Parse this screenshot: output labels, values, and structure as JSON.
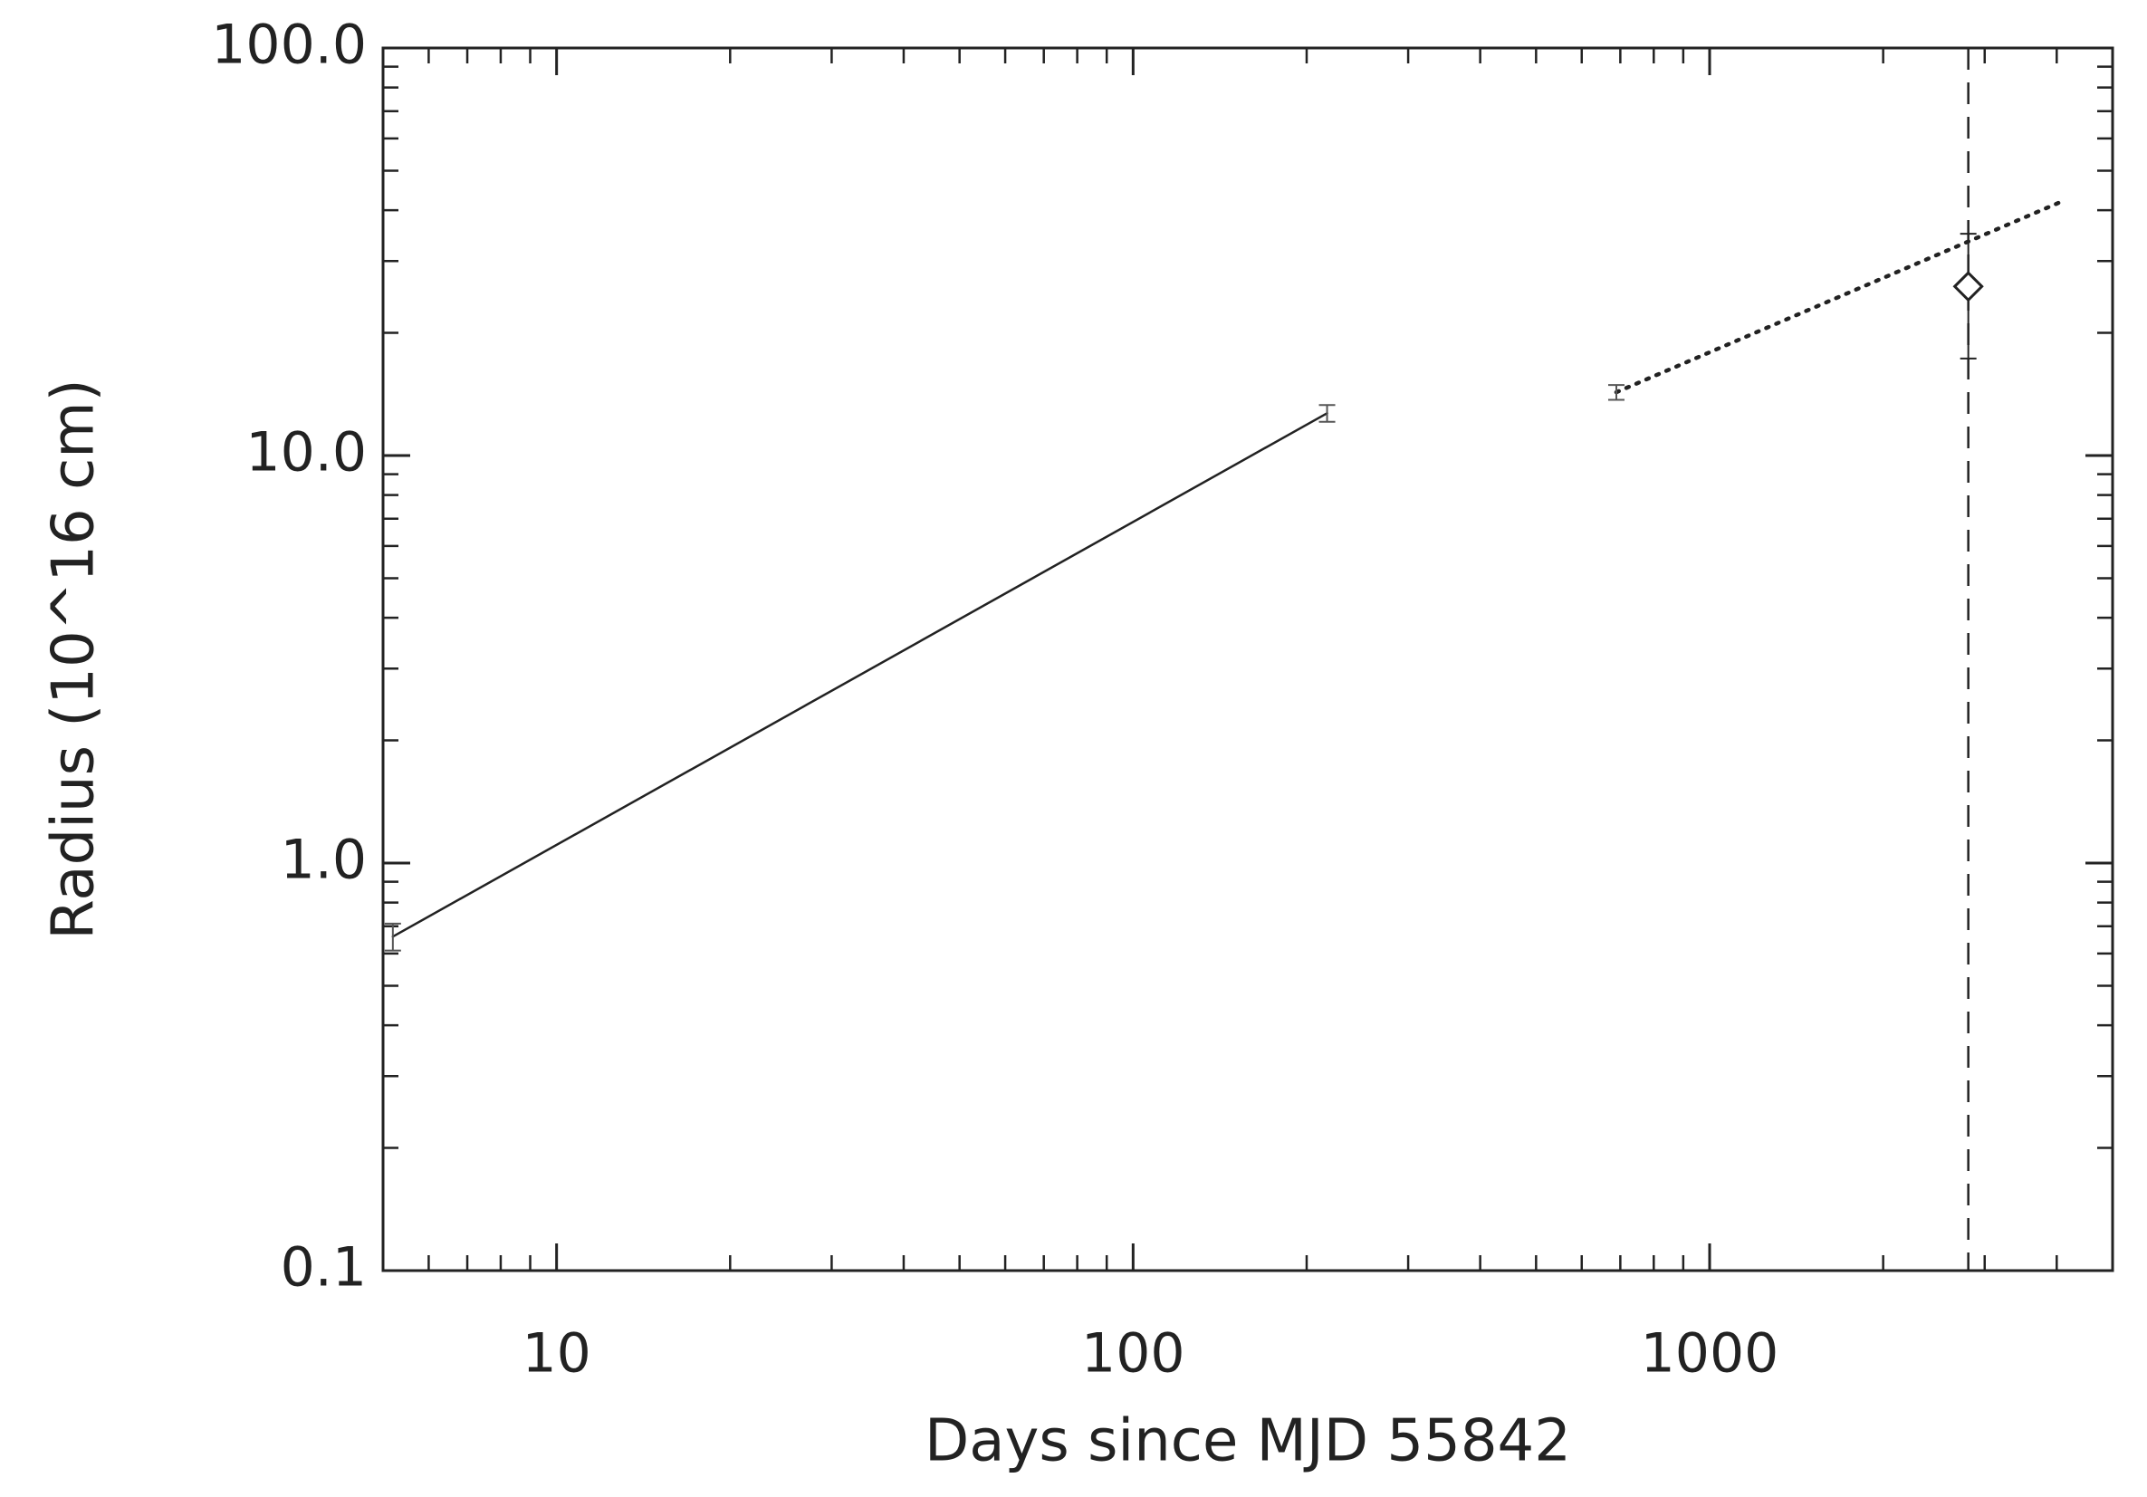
{
  "chart_data": {
    "type": "line",
    "xlabel": "Days since MJD 55842",
    "ylabel": "Radius (10^16 cm)",
    "xscale": "log",
    "yscale": "log",
    "xlim": [
      5,
      5000
    ],
    "ylim": [
      0.1,
      100
    ],
    "xticks": [
      10,
      100,
      1000
    ],
    "yticks": [
      0.1,
      {
        "value": 1,
        "label": "1.0"
      },
      {
        "value": 10,
        "label": "10.0"
      },
      {
        "value": 100,
        "label": "100.0"
      }
    ],
    "xminorticks": [
      6,
      7,
      8,
      9,
      20,
      30,
      40,
      50,
      60,
      70,
      80,
      90,
      200,
      300,
      400,
      500,
      600,
      700,
      800,
      900,
      2000,
      3000,
      4000
    ],
    "yminorticks": [
      0.2,
      0.3,
      0.4,
      0.5,
      0.6,
      0.7,
      0.8,
      0.9,
      2,
      3,
      4,
      5,
      6,
      7,
      8,
      9,
      20,
      30,
      40,
      50,
      60,
      70,
      80,
      90
    ],
    "series": [
      {
        "style": "solid",
        "color": "#222222",
        "x": [
          5.2,
          217
        ],
        "values": [
          0.66,
          12.7
        ],
        "errors": [
          0.05,
          0.6
        ]
      },
      {
        "style": "dotted",
        "color": "#222222",
        "x": [
          689,
          4080
        ],
        "values": [
          14.3,
          42
        ],
        "errors": [
          0.6,
          null
        ]
      },
      {
        "style": "marker",
        "marker": "diamond",
        "color": "#222222",
        "x": [
          2810
        ],
        "values": [
          26
        ],
        "err_low": [
          8.7
        ],
        "err_high": [
          9
        ]
      }
    ],
    "vlines": [
      {
        "x": 2810,
        "style": "dashed",
        "color": "#222222"
      }
    ]
  }
}
